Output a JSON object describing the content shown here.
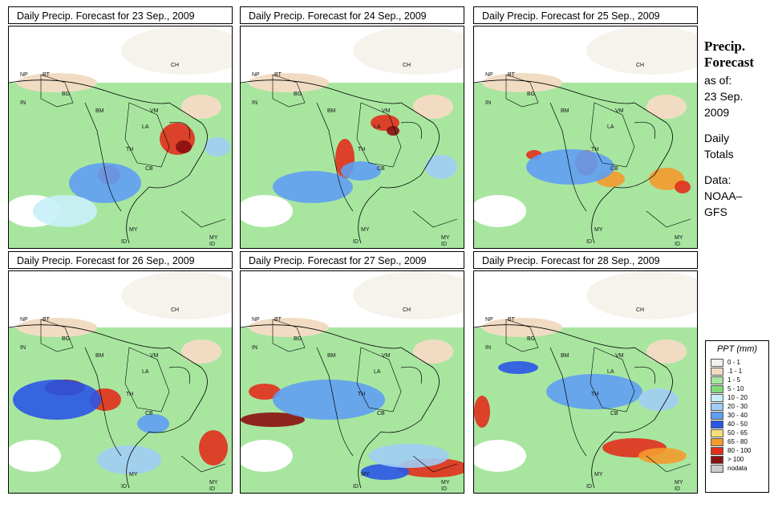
{
  "panels": [
    {
      "title": "Daily Precip. Forecast for  23 Sep., 2009"
    },
    {
      "title": "Daily Precip. Forecast for  24 Sep., 2009"
    },
    {
      "title": "Daily Precip. Forecast for  25 Sep., 2009"
    },
    {
      "title": "Daily Precip. Forecast for  26 Sep., 2009"
    },
    {
      "title": "Daily Precip. Forecast for  27 Sep., 2009"
    },
    {
      "title": "Daily Precip. Forecast for  28 Sep., 2009"
    }
  ],
  "map_labels": [
    "NP",
    "BT",
    "BG",
    "IN",
    "CH",
    "BM",
    "VM",
    "LA",
    "TH",
    "CB",
    "MY",
    "ID",
    "MY",
    "ID"
  ],
  "side": {
    "title1": "Precip.",
    "title2": "Forecast",
    "asof": "as of:",
    "date1": "23 Sep.",
    "date2": "2009",
    "daily1": "Daily",
    "daily2": "Totals",
    "data1": "Data:",
    "data2": "NOAA–",
    "data3": "GFS"
  },
  "legend": {
    "title": "PPT (mm)",
    "items": [
      {
        "label": "0 - 1",
        "color": "#f4f1ec"
      },
      {
        "label": ".1 - 1",
        "color": "#f1dcc3"
      },
      {
        "label": "1 - 5",
        "color": "#a8e6a0"
      },
      {
        "label": "5 - 10",
        "color": "#7fdc77"
      },
      {
        "label": "10 - 20",
        "color": "#c8f0f8"
      },
      {
        "label": "20 - 30",
        "color": "#a0cdf5"
      },
      {
        "label": "30 - 40",
        "color": "#5f9ef2"
      },
      {
        "label": "40 - 50",
        "color": "#2a56e6"
      },
      {
        "label": "50 - 65",
        "color": "#f7df78"
      },
      {
        "label": "65 - 80",
        "color": "#f49a2e"
      },
      {
        "label": "80 - 100",
        "color": "#e0301c"
      },
      {
        "label": "> 100",
        "color": "#8a1010"
      },
      {
        "label": "nodata",
        "color": "#cccccc"
      }
    ]
  }
}
